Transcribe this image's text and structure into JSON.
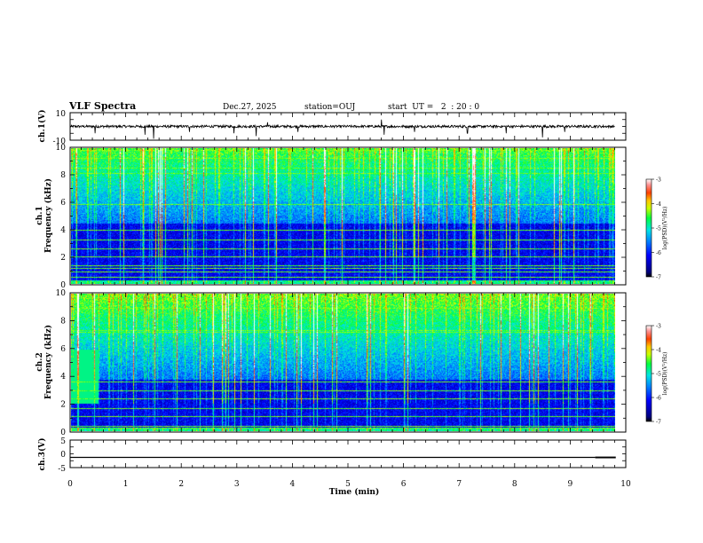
{
  "header": {
    "title": "VLF Spectra",
    "date": "Dec.27, 2025",
    "station": "station=OUJ",
    "start": "start  UT =   2  : 20 : 0"
  },
  "chart_data": [
    {
      "type": "line",
      "name": "ch1-waveform",
      "ylabel": "ch.1(V)",
      "ylim": [
        -10,
        10
      ],
      "yticks": [
        "10",
        "-10"
      ],
      "xlim": [
        0,
        10
      ],
      "baseline": 0,
      "spikes": [
        {
          "t": 0.45,
          "v": -5
        },
        {
          "t": 1.35,
          "v": -6
        },
        {
          "t": 1.5,
          "v": -9
        },
        {
          "t": 2.15,
          "v": -4
        },
        {
          "t": 2.95,
          "v": -5
        },
        {
          "t": 3.35,
          "v": -7
        },
        {
          "t": 3.55,
          "v": 3
        },
        {
          "t": 4.1,
          "v": -4
        },
        {
          "t": 5.6,
          "v": 5
        },
        {
          "t": 5.65,
          "v": -6
        },
        {
          "t": 6.2,
          "v": -4
        },
        {
          "t": 7.15,
          "v": -5
        },
        {
          "t": 7.85,
          "v": -5
        },
        {
          "t": 8.5,
          "v": -8
        },
        {
          "t": 8.9,
          "v": -4
        }
      ]
    },
    {
      "type": "heatmap",
      "name": "ch1-spectrogram",
      "ylabel": "ch.1\nFrequency (kHz)",
      "ylim": [
        0,
        10
      ],
      "xlim": [
        0,
        9.8
      ],
      "yticks": [
        "0",
        "2",
        "4",
        "6",
        "8",
        "10"
      ],
      "colorbar": {
        "label": "log(PSD)(V²/Hz)",
        "range": [
          -7,
          -3
        ],
        "ticks": [
          "-3",
          "-4",
          "-5",
          "-6",
          "-7"
        ]
      },
      "quiet_band_khz": [
        0.3,
        4.5
      ],
      "strong_lines_khz": [
        0.5,
        0.9,
        1.4,
        2.0,
        2.6,
        3.3,
        4.0
      ]
    },
    {
      "type": "heatmap",
      "name": "ch2-spectrogram",
      "ylabel": "ch.2\nFrequency (kHz)",
      "ylim": [
        0,
        10
      ],
      "xlim": [
        0,
        9.8
      ],
      "yticks": [
        "0",
        "2",
        "4",
        "6",
        "8",
        "10"
      ],
      "colorbar": {
        "label": "log(PSD)(V²/Hz)",
        "range": [
          -7,
          -3
        ],
        "ticks": [
          "-3",
          "-4",
          "-5",
          "-6",
          "-7"
        ]
      },
      "quiet_band_khz": [
        0.3,
        3.8
      ],
      "strong_lines_khz": [
        0.4,
        1.1,
        1.7,
        2.4,
        3.0,
        3.6
      ]
    },
    {
      "type": "line",
      "name": "ch3-trace",
      "ylabel": "ch.3(V)",
      "ylim": [
        -5,
        5
      ],
      "yticks": [
        "5",
        "0",
        "-5"
      ],
      "xlim": [
        0,
        10
      ],
      "xticks": [
        "0",
        "1",
        "2",
        "3",
        "4",
        "5",
        "6",
        "7",
        "8",
        "9",
        "10"
      ],
      "xlabel": "Time (min)",
      "level": -1.3,
      "step": {
        "t": 9.45,
        "v": -1.0
      }
    }
  ]
}
